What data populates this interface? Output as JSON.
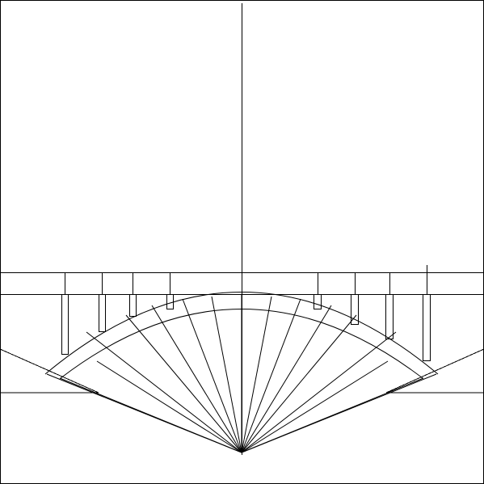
{
  "diagram": {
    "line_color": "#000000",
    "background": "#ffffff",
    "panel_count": 4,
    "ray_count": 17,
    "arch_count": 2,
    "pillars": {
      "left": 4,
      "right": 4
    },
    "ground_wedges": 2
  }
}
